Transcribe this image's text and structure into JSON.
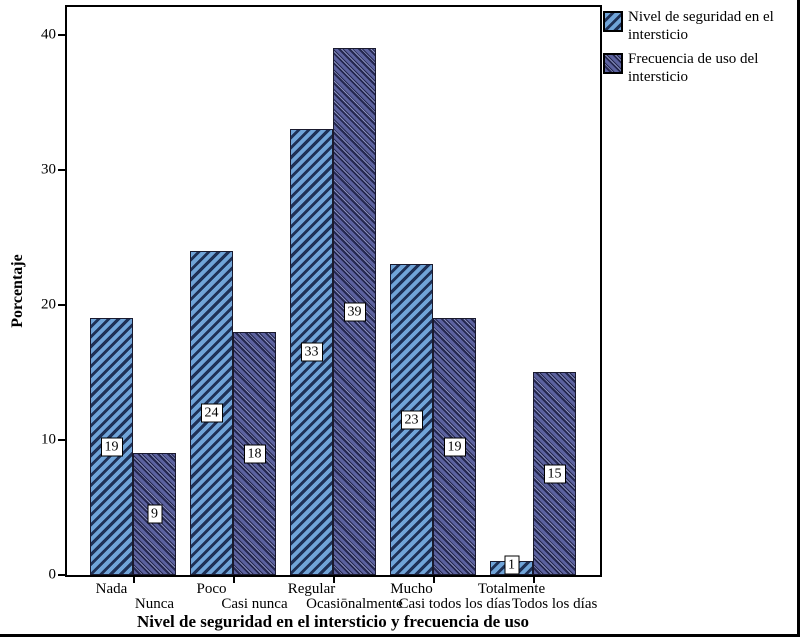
{
  "chart_data": {
    "type": "bar",
    "title": "",
    "xlabel": "Nivel de seguridad en el intersticio y frecuencia de uso",
    "ylabel": "Porcentaje",
    "ylim": [
      0,
      42
    ],
    "y_ticks": [
      0,
      10,
      20,
      30,
      40
    ],
    "grid": false,
    "legend_position": "top-right-outside",
    "bar_value_labels": true,
    "groups": [
      {
        "label_row1": "Nada",
        "label_row2": "Nunca"
      },
      {
        "label_row1": "Poco",
        "label_row2": "Casi nunca"
      },
      {
        "label_row1": "Regular",
        "label_row2": "Ocasiōnalmente"
      },
      {
        "label_row1": "Mucho",
        "label_row2": "Casi todos los días"
      },
      {
        "label_row1": "Totalmente",
        "label_row2": "Todos los días"
      }
    ],
    "series": [
      {
        "name": "Nivel de seguridad en el intersticio",
        "values": [
          19,
          24,
          33,
          23,
          1
        ],
        "color": "#70A4D8",
        "hatch": "forward-diagonal",
        "hatch_color": "#1E3056"
      },
      {
        "name": "Frecuencia de uso del intersticio",
        "values": [
          9,
          18,
          39,
          19,
          15
        ],
        "color": "#5C629F",
        "hatch": "backward-diagonal",
        "hatch_color": "#24274F"
      }
    ]
  }
}
